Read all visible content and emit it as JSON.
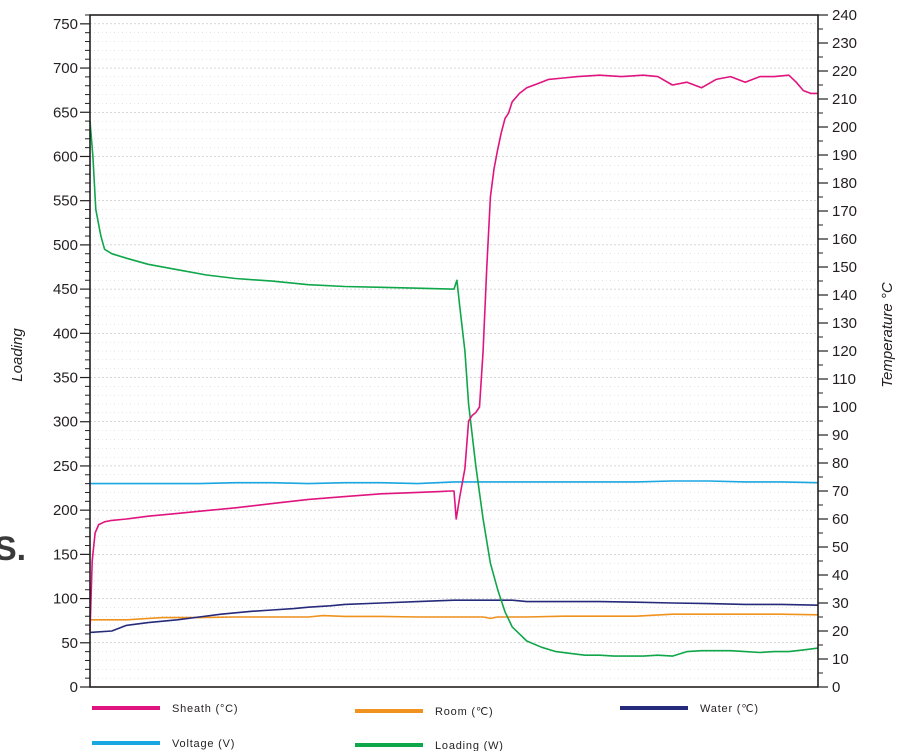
{
  "panel_letter": "S.",
  "colors": {
    "sheath": "#e0147f",
    "room": "#f0921e",
    "water": "#262a7a",
    "voltage": "#1aa6e0",
    "loading": "#10a64a",
    "grid": "#b0b0b0",
    "axis": "#231f20"
  },
  "chart_data": {
    "type": "line",
    "title": "",
    "xlabel": "",
    "ylabel": "Loading",
    "y2label": "Temperature °C",
    "ylim": [
      0,
      760
    ],
    "y2lim": [
      0,
      240
    ],
    "xlim": [
      0,
      100
    ],
    "yticks": [
      "0",
      "50",
      "100",
      "150",
      "200",
      "250",
      "300",
      "350",
      "400",
      "450",
      "500",
      "550",
      "600",
      "650",
      "700",
      "750"
    ],
    "y2ticks": [
      "0",
      "10",
      "20",
      "30",
      "40",
      "50",
      "60",
      "70",
      "80",
      "90",
      "100",
      "110",
      "120",
      "130",
      "140",
      "150",
      "160",
      "170",
      "180",
      "190",
      "200",
      "210",
      "220",
      "230",
      "240"
    ],
    "grid": true,
    "legend_position": "bottom",
    "series": [
      {
        "name": "Sheath (°C)",
        "key": "sheath",
        "axis": "right",
        "x": [
          0,
          0.3,
          0.7,
          1.2,
          2,
          3,
          5,
          8,
          12,
          16,
          20,
          25,
          30,
          35,
          40,
          45,
          48,
          49.5,
          50,
          50.3,
          50.8,
          51.5,
          52,
          52.5,
          53,
          53.5,
          54,
          54.5,
          55,
          55.5,
          56,
          56.5,
          57,
          57.5,
          58,
          59,
          60,
          61,
          62,
          63,
          65,
          67,
          70,
          73,
          76,
          78,
          80,
          82,
          84,
          86,
          88,
          90,
          92,
          94,
          96,
          97,
          98,
          99,
          100
        ],
        "values": [
          20,
          45,
          55,
          58,
          59,
          59.5,
          60,
          61,
          62,
          63,
          64,
          65.5,
          67,
          68,
          69,
          69.5,
          69.8,
          70,
          70,
          60,
          68,
          78,
          95,
          97,
          98,
          100,
          120,
          150,
          175,
          185,
          192,
          198,
          203,
          205,
          209,
          212,
          214,
          215,
          216,
          217,
          217.5,
          218,
          218.5,
          218,
          218.5,
          218,
          215,
          216,
          214,
          217,
          218,
          216,
          218,
          218,
          218.5,
          216,
          213,
          212,
          212
        ]
      },
      {
        "name": "Room (℃)",
        "key": "room",
        "axis": "right",
        "x": [
          0,
          5,
          8,
          10,
          15,
          20,
          25,
          30,
          32,
          35,
          40,
          45,
          50,
          54,
          55,
          56,
          60,
          65,
          70,
          75,
          80,
          85,
          90,
          95,
          100
        ],
        "values": [
          24,
          24,
          24.5,
          24.8,
          24.8,
          25,
          25,
          25,
          25.5,
          25.2,
          25.2,
          25,
          25,
          25,
          24.5,
          25,
          25,
          25.3,
          25.3,
          25.3,
          26,
          26,
          26,
          26,
          25.8
        ]
      },
      {
        "name": "Water (℃)",
        "key": "water",
        "axis": "right",
        "x": [
          0,
          3,
          5,
          8,
          10,
          12,
          15,
          18,
          20,
          22,
          25,
          28,
          30,
          33,
          35,
          40,
          45,
          50,
          52,
          55,
          58,
          60,
          65,
          70,
          75,
          80,
          85,
          90,
          95,
          100
        ],
        "values": [
          19.5,
          20,
          22,
          23,
          23.5,
          24,
          25,
          26,
          26.5,
          27,
          27.5,
          28,
          28.5,
          29,
          29.5,
          30,
          30.5,
          31,
          31,
          31,
          31,
          30.5,
          30.5,
          30.5,
          30.3,
          30,
          29.8,
          29.5,
          29.5,
          29.2
        ]
      },
      {
        "name": "Voltage (V)",
        "key": "voltage",
        "axis": "left",
        "x": [
          0,
          5,
          10,
          15,
          20,
          25,
          30,
          35,
          40,
          45,
          50,
          55,
          60,
          65,
          70,
          75,
          80,
          85,
          90,
          95,
          100
        ],
        "values": [
          230,
          230,
          230,
          230,
          231,
          231,
          230,
          231,
          231,
          230,
          232,
          232,
          232,
          232,
          232,
          232,
          233,
          233,
          232,
          232,
          231
        ]
      },
      {
        "name": "Loading (W)",
        "key": "loading",
        "axis": "left",
        "x": [
          0,
          0.4,
          0.8,
          1.5,
          2,
          3,
          5,
          8,
          12,
          16,
          20,
          25,
          30,
          35,
          40,
          45,
          49.5,
          50,
          50.4,
          50.8,
          51.5,
          52,
          53,
          54,
          55,
          56,
          57,
          58,
          60,
          62,
          64,
          66,
          68,
          70,
          72,
          74,
          76,
          78,
          80,
          82,
          84,
          86,
          88,
          90,
          92,
          94,
          96,
          98,
          100
        ],
        "values": [
          640,
          600,
          540,
          510,
          495,
          490,
          485,
          478,
          472,
          466,
          462,
          459,
          455,
          453,
          452,
          451,
          450,
          450,
          460,
          430,
          380,
          320,
          250,
          190,
          140,
          110,
          85,
          68,
          52,
          45,
          40,
          38,
          36,
          36,
          35,
          35,
          35,
          36,
          35,
          40,
          41,
          41,
          41,
          40,
          39,
          40,
          40,
          42,
          44
        ]
      }
    ]
  }
}
